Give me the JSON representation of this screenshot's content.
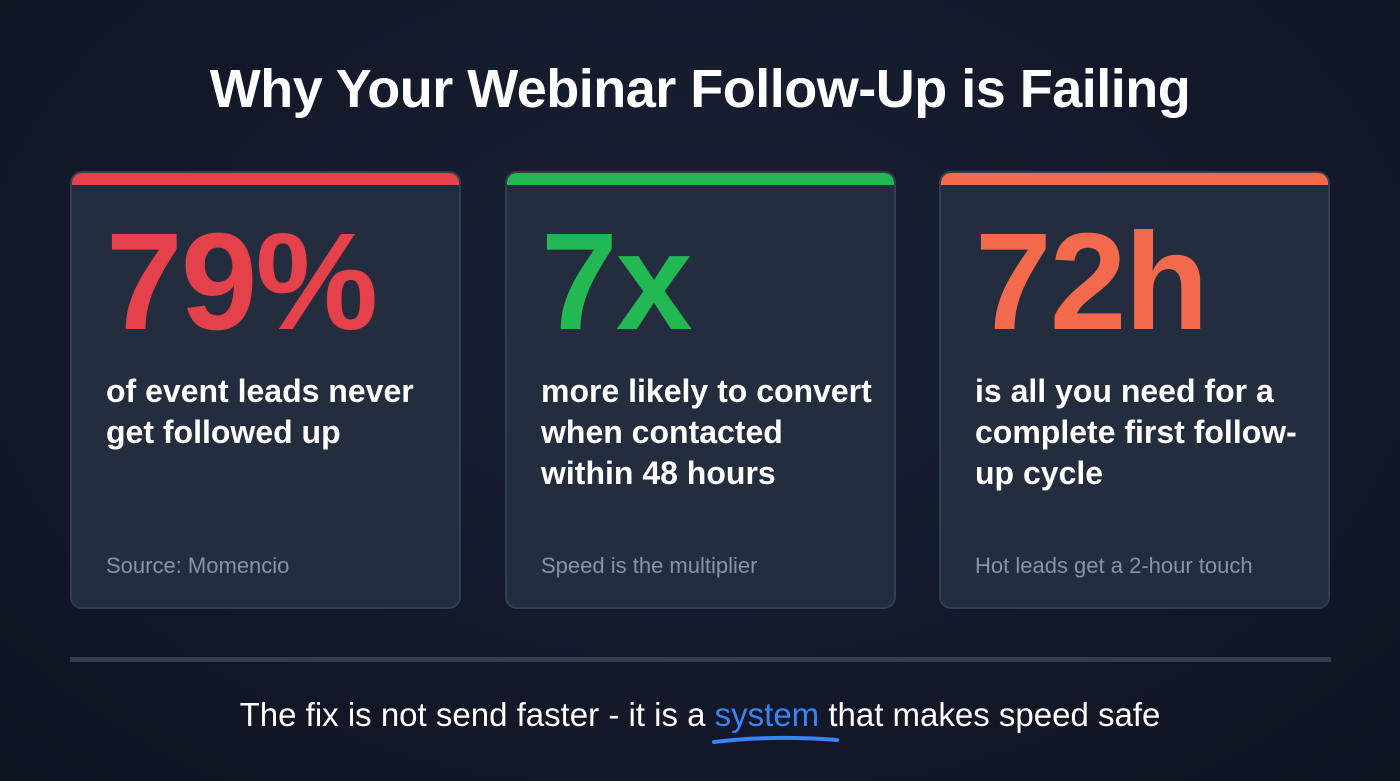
{
  "title": "Why Your Webinar Follow-Up is Failing",
  "cards": [
    {
      "stat": "79%",
      "description": "of event leads never get followed up",
      "note": "Source: Momencio",
      "accent": "#e5414a"
    },
    {
      "stat": "7x",
      "description": "more likely to convert when contacted within 48 hours",
      "note": "Speed is the multiplier",
      "accent": "#22b955"
    },
    {
      "stat": "72h",
      "description": "is all you need for a complete first follow-up cycle",
      "note": "Hot leads get a 2-hour touch",
      "accent": "#f26a4b"
    }
  ],
  "footer": {
    "before": "The fix is not send faster - it is a ",
    "highlight": "system",
    "after": " that makes speed safe",
    "highlight_color": "#3b82f6"
  }
}
